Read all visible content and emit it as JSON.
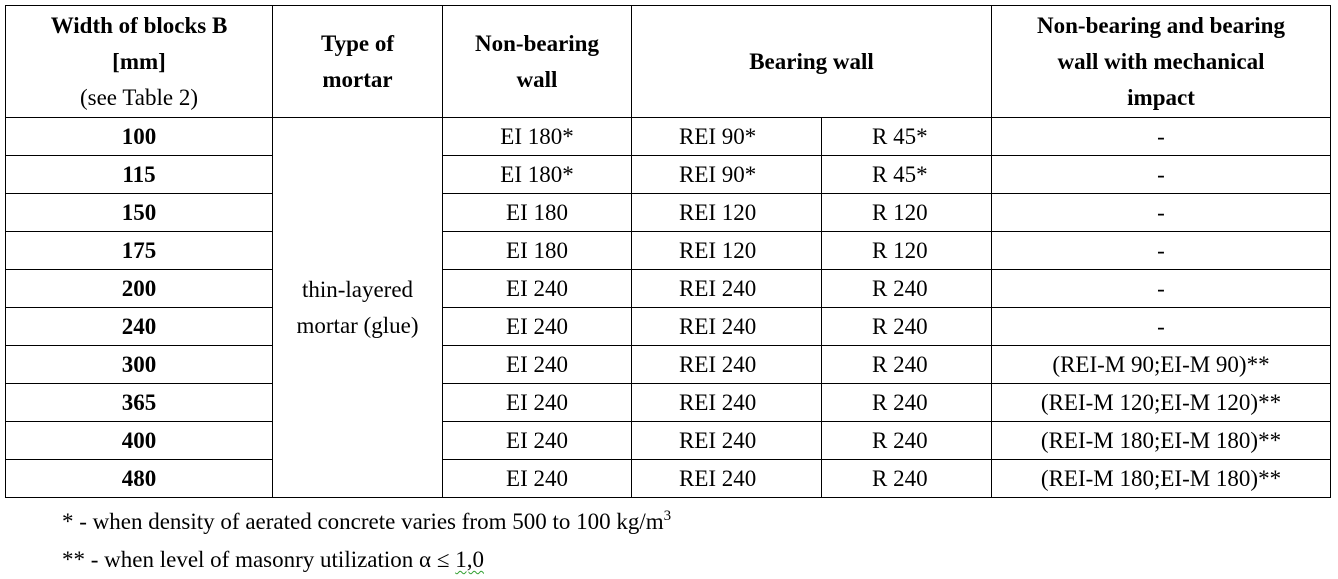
{
  "header": {
    "width_line1": "Width of blocks B",
    "width_line2": "[mm]",
    "width_line3": "(see Table 2)",
    "mortar_line1": "Type of",
    "mortar_line2": "mortar",
    "nonbearing_line1": "Non-bearing",
    "nonbearing_line2": "wall",
    "bearing": "Bearing wall",
    "mech_line1": "Non-bearing and bearing",
    "mech_line2": "wall with mechanical",
    "mech_line3": "impact"
  },
  "mortar": {
    "line1": "thin-layered",
    "line2": "mortar (glue)"
  },
  "rows": [
    {
      "width": "100",
      "ei": "EI 180*",
      "rei": "REI 90*",
      "r": "R 45*",
      "mech": "-"
    },
    {
      "width": "115",
      "ei": "EI 180*",
      "rei": "REI 90*",
      "r": "R 45*",
      "mech": "-"
    },
    {
      "width": "150",
      "ei": "EI 180",
      "rei": "REI 120",
      "r": "R 120",
      "mech": "-"
    },
    {
      "width": "175",
      "ei": "EI 180",
      "rei": "REI 120",
      "r": "R 120",
      "mech": "-"
    },
    {
      "width": "200",
      "ei": "EI 240",
      "rei": "REI 240",
      "r": "R 240",
      "mech": "-"
    },
    {
      "width": "240",
      "ei": "EI 240",
      "rei": "REI 240",
      "r": "R 240",
      "mech": "-"
    },
    {
      "width": "300",
      "ei": "EI 240",
      "rei": "REI 240",
      "r": "R 240",
      "mech": "(REI-M 90;EI-M 90)**"
    },
    {
      "width": "365",
      "ei": "EI 240",
      "rei": "REI 240",
      "r": "R 240",
      "mech": "(REI-M 120;EI-M 120)**"
    },
    {
      "width": "400",
      "ei": "EI 240",
      "rei": "REI 240",
      "r": "R 240",
      "mech": "(REI-M 180;EI-M 180)**"
    },
    {
      "width": "480",
      "ei": "EI 240",
      "rei": "REI 240",
      "r": "R 240",
      "mech": "(REI-M 180;EI-M 180)**"
    }
  ],
  "footnotes": {
    "note1_text": "* - when density of aerated concrete varies from 500 to 100 kg/m",
    "note1_sup": "3",
    "note2_text": "** - when level of masonry utilization α ≤ ",
    "note2_value": "1,0"
  }
}
